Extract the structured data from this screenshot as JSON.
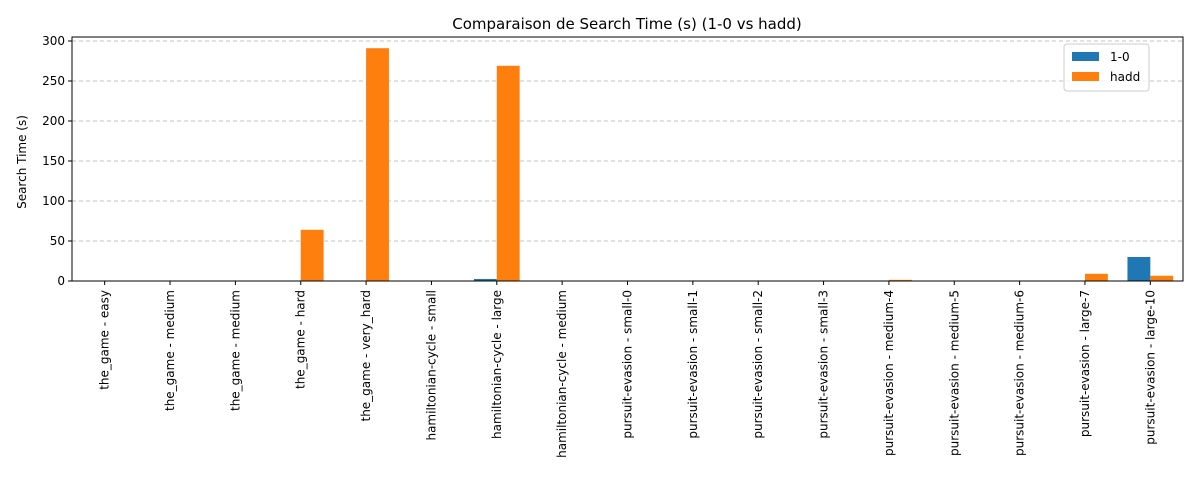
{
  "chart_data": {
    "type": "bar",
    "title": "Comparaison de Search Time (s) (1-0 vs hadd)",
    "xlabel": "",
    "ylabel": "Search Time (s)",
    "ylim": [
      0,
      305
    ],
    "yticks": [
      0,
      50,
      100,
      150,
      200,
      250,
      300
    ],
    "grid": "y-dashed",
    "legend_position": "top-right",
    "categories": [
      "the_game - easy",
      "the_game - medium",
      "the_game - medium",
      "the_game - hard",
      "the_game - very_hard",
      "hamiltonian-cycle - small",
      "hamiltonian-cycle - large",
      "hamiltonian-cycle - medium",
      "pursuit-evasion - small-0",
      "pursuit-evasion - small-1",
      "pursuit-evasion - small-2",
      "pursuit-evasion - small-3",
      "pursuit-evasion - medium-4",
      "pursuit-evasion - medium-5",
      "pursuit-evasion - medium-6",
      "pursuit-evasion - large-7",
      "pursuit-evasion - large-10"
    ],
    "series": [
      {
        "name": "1-0",
        "color": "#1f77b4",
        "values": [
          0.05,
          0.05,
          0.05,
          0.05,
          0.05,
          0.05,
          2.5,
          0.05,
          0.05,
          0.05,
          0.05,
          0.05,
          0.2,
          0.05,
          0.05,
          0.1,
          30
        ]
      },
      {
        "name": "hadd",
        "color": "#ff7f0e",
        "values": [
          0.05,
          0.05,
          0.05,
          64,
          291,
          0.05,
          269,
          0.05,
          0.05,
          0.05,
          0.05,
          0.05,
          1.5,
          0.05,
          0.05,
          9,
          6.5
        ]
      }
    ]
  }
}
